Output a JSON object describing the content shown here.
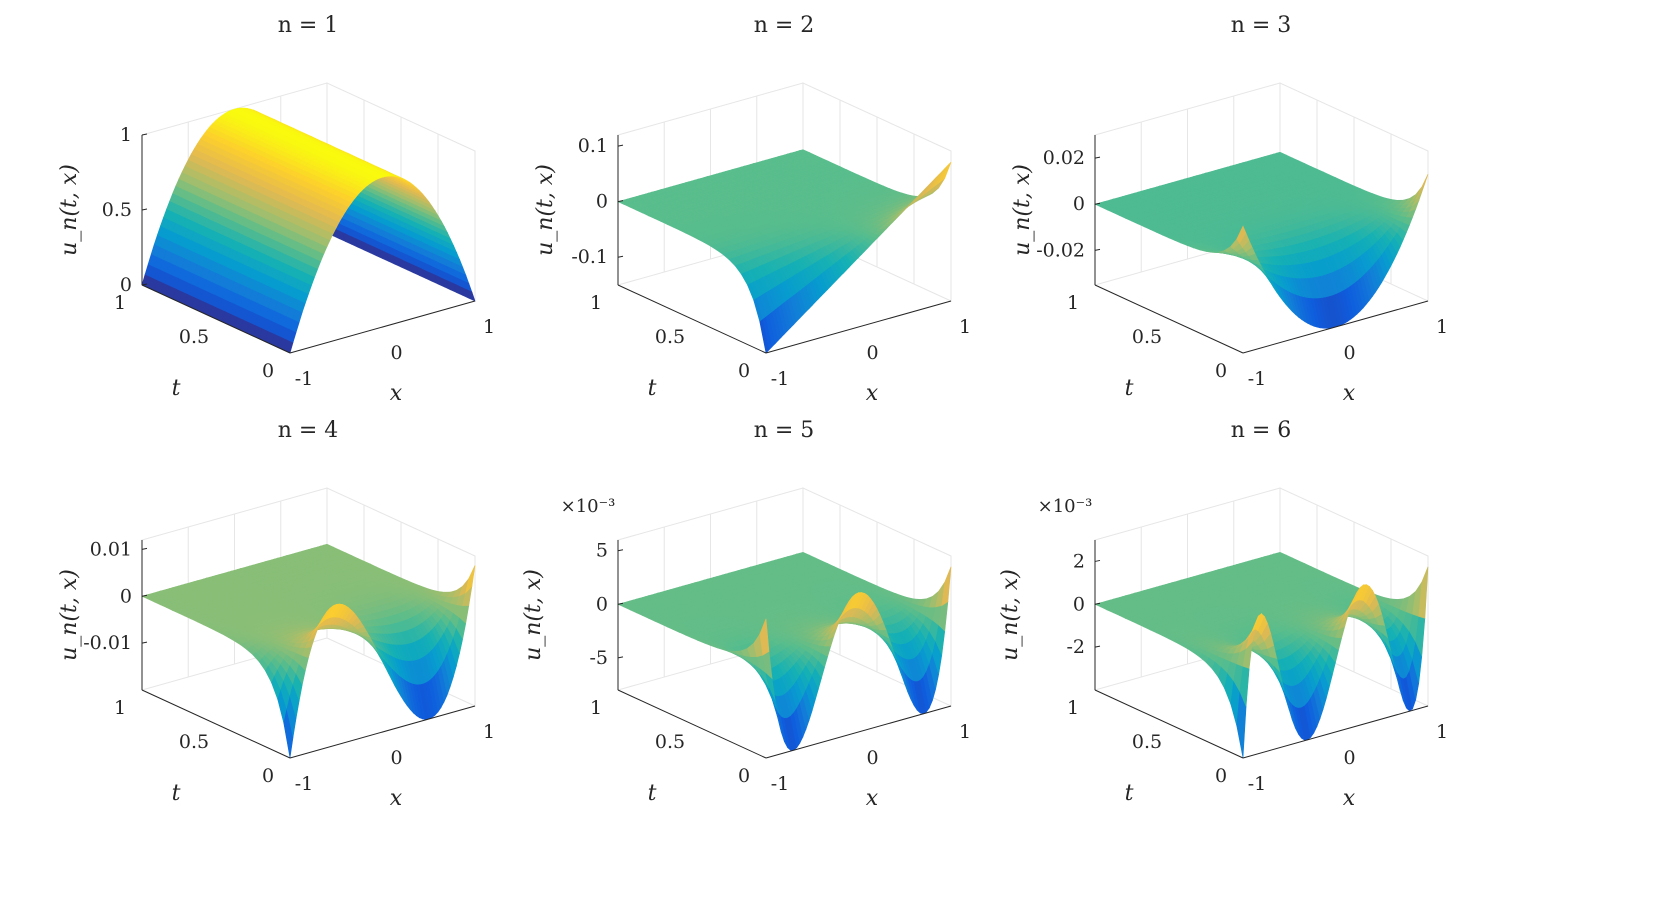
{
  "figure": {
    "panels": [
      {
        "title": "n = 1",
        "zlabel": "u_n(t, x)",
        "xlabel": "x",
        "ylabel": "t",
        "zticks": [
          "0",
          "0.5",
          "1"
        ],
        "xticks": [
          "-1",
          "0",
          "1"
        ],
        "yticks": [
          "0",
          "0.5",
          "1"
        ],
        "multiplier": ""
      },
      {
        "title": "n = 2",
        "zlabel": "u_n(t, x)",
        "xlabel": "x",
        "ylabel": "t",
        "zticks": [
          "-0.1",
          "0",
          "0.1"
        ],
        "xticks": [
          "-1",
          "0",
          "1"
        ],
        "yticks": [
          "0",
          "0.5",
          "1"
        ],
        "multiplier": ""
      },
      {
        "title": "n = 3",
        "zlabel": "u_n(t, x)",
        "xlabel": "x",
        "ylabel": "t",
        "zticks": [
          "-0.02",
          "0",
          "0.02"
        ],
        "xticks": [
          "-1",
          "0",
          "1"
        ],
        "yticks": [
          "0",
          "0.5",
          "1"
        ],
        "multiplier": ""
      },
      {
        "title": "n = 4",
        "zlabel": "u_n(t, x)",
        "xlabel": "x",
        "ylabel": "t",
        "zticks": [
          "-0.01",
          "0",
          "0.01"
        ],
        "xticks": [
          "-1",
          "0",
          "1"
        ],
        "yticks": [
          "0",
          "0.5",
          "1"
        ],
        "multiplier": ""
      },
      {
        "title": "n = 5",
        "zlabel": "u_n(t, x)",
        "xlabel": "x",
        "ylabel": "t",
        "zticks": [
          "-5",
          "0",
          "5"
        ],
        "xticks": [
          "-1",
          "0",
          "1"
        ],
        "yticks": [
          "0",
          "0.5",
          "1"
        ],
        "multiplier": "×10⁻³"
      },
      {
        "title": "n = 6",
        "zlabel": "u_n(t, x)",
        "xlabel": "x",
        "ylabel": "t",
        "zticks": [
          "-2",
          "0",
          "2"
        ],
        "xticks": [
          "-1",
          "0",
          "1"
        ],
        "yticks": [
          "0",
          "0.5",
          "1"
        ],
        "multiplier": "×10⁻³"
      }
    ]
  },
  "chart_data": [
    {
      "type": "surface",
      "title": "n = 1",
      "xlabel": "x",
      "ylabel": "t",
      "zlabel": "u_n(t, x)",
      "xlim": [
        -1,
        1
      ],
      "ylim": [
        0,
        1
      ],
      "zlim": [
        0,
        1
      ],
      "peak_count": 1,
      "peak_amplitude": 1,
      "min_value": 0,
      "edge_value_at_t0": 0,
      "colormap": "parula",
      "grid": true
    },
    {
      "type": "surface",
      "title": "n = 2",
      "xlabel": "x",
      "ylabel": "t",
      "zlabel": "u_n(t, x)",
      "xlim": [
        -1,
        1
      ],
      "ylim": [
        0,
        1
      ],
      "zlim": [
        -0.15,
        0.12
      ],
      "peak_count": 1,
      "peak_amplitude": 0.1,
      "min_value": -0.15,
      "colormap": "parula",
      "grid": true
    },
    {
      "type": "surface",
      "title": "n = 3",
      "xlabel": "x",
      "ylabel": "t",
      "zlabel": "u_n(t, x)",
      "xlim": [
        -1,
        1
      ],
      "ylim": [
        0,
        1
      ],
      "zlim": [
        -0.035,
        0.03
      ],
      "peak_count": 2,
      "peak_amplitude": 0.02,
      "min_value": -0.035,
      "colormap": "parula",
      "grid": true
    },
    {
      "type": "surface",
      "title": "n = 4",
      "xlabel": "x",
      "ylabel": "t",
      "zlabel": "u_n(t, x)",
      "xlim": [
        -1,
        1
      ],
      "ylim": [
        0,
        1
      ],
      "zlim": [
        -0.02,
        0.012
      ],
      "peak_count": 3,
      "peak_amplitude": 0.01,
      "min_value": -0.02,
      "colormap": "parula",
      "grid": true
    },
    {
      "type": "surface",
      "title": "n = 5",
      "xlabel": "x",
      "ylabel": "t",
      "zlabel": "u_n(t, x)",
      "xlim": [
        -1,
        1
      ],
      "ylim": [
        0,
        1
      ],
      "zlim": [
        -0.008,
        0.006
      ],
      "peak_count": 4,
      "peak_amplitude": 0.005,
      "min_value": -0.008,
      "colormap": "parula",
      "grid": true
    },
    {
      "type": "surface",
      "title": "n = 6",
      "xlabel": "x",
      "ylabel": "t",
      "zlabel": "u_n(t, x)",
      "xlim": [
        -1,
        1
      ],
      "ylim": [
        0,
        1
      ],
      "zlim": [
        -0.004,
        0.003
      ],
      "peak_count": 5,
      "peak_amplitude": 0.0025,
      "min_value": -0.004,
      "colormap": "parula",
      "grid": true
    }
  ]
}
